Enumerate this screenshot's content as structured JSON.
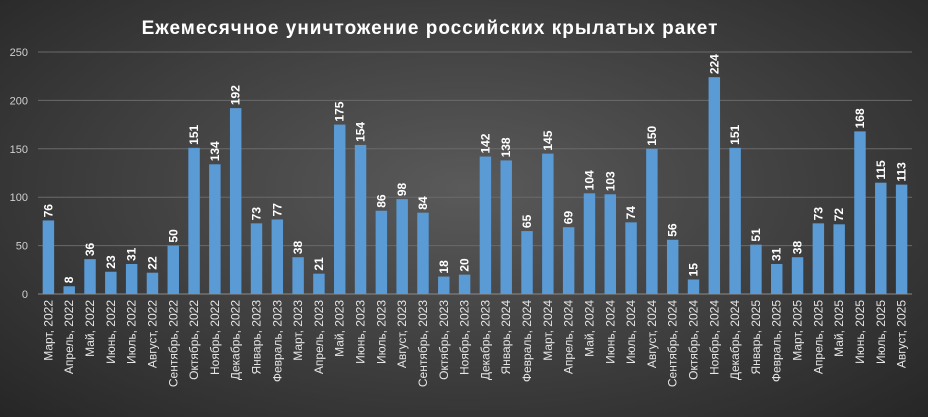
{
  "chart_data": {
    "type": "bar",
    "title": "Ежемесячное уничтожение российских крылатых ракет",
    "xlabel": "",
    "ylabel": "",
    "ylim": [
      0,
      250
    ],
    "yticks": [
      0,
      50,
      100,
      150,
      200,
      250
    ],
    "grid": true,
    "legend": "none",
    "bar_color": "#5b9bd5",
    "categories": [
      "Март, 2022",
      "Апрель, 2022",
      "Май, 2022",
      "Июнь, 2022",
      "Июль, 2022",
      "Август, 2022",
      "Сентябрь, 2022",
      "Октябрь, 2022",
      "Ноябрь, 2022",
      "Декабрь, 2022",
      "Январь, 2023",
      "Февраль, 2023",
      "Март, 2023",
      "Апрель, 2023",
      "Май, 2023",
      "Июнь, 2023",
      "Июль, 2023",
      "Август, 2023",
      "Сентябрь, 2023",
      "Октябрь, 2023",
      "Ноябрь, 2023",
      "Декабрь, 2023",
      "Январь, 2024",
      "Февраль, 2024",
      "Март, 2024",
      "Апрель, 2024",
      "Май, 2024",
      "Июнь, 2024",
      "Июль, 2024",
      "Август, 2024",
      "Сентябрь, 2024",
      "Октябрь, 2024",
      "Ноябрь, 2024",
      "Декабрь, 2024",
      "Январь, 2025",
      "Февраль, 2025",
      "Март, 2025",
      "Апрель, 2025",
      "Май, 2025",
      "Июнь, 2025",
      "Июль, 2025",
      "Август, 2025"
    ],
    "values": [
      76,
      8,
      36,
      23,
      31,
      22,
      50,
      151,
      134,
      192,
      73,
      77,
      38,
      21,
      175,
      154,
      86,
      98,
      84,
      18,
      20,
      142,
      138,
      65,
      145,
      69,
      104,
      103,
      74,
      150,
      56,
      15,
      224,
      151,
      51,
      31,
      38,
      73,
      72,
      168,
      115,
      113
    ]
  }
}
